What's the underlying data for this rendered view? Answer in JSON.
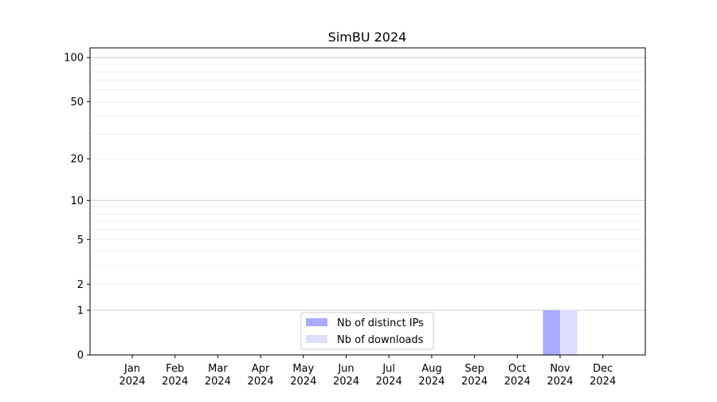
{
  "chart_data": {
    "type": "bar",
    "title": "SimBU 2024",
    "xlabel": "",
    "ylabel": "",
    "y_scale": "log(1+y)",
    "ylim": [
      0,
      116
    ],
    "grid": true,
    "legend_position": "lower-center",
    "categories": [
      "Jan\n2024",
      "Feb\n2024",
      "Mar\n2024",
      "Apr\n2024",
      "May\n2024",
      "Jun\n2024",
      "Jul\n2024",
      "Aug\n2024",
      "Sep\n2024",
      "Oct\n2024",
      "Nov\n2024",
      "Dec\n2024"
    ],
    "y_ticks": [
      0,
      1,
      2,
      5,
      10,
      20,
      50,
      100
    ],
    "series": [
      {
        "name": "Nb of distinct IPs",
        "color": "#aaaaff",
        "values": [
          0,
          0,
          0,
          0,
          0,
          0,
          0,
          0,
          0,
          0,
          1,
          0
        ]
      },
      {
        "name": "Nb of downloads",
        "color": "#ddddff",
        "values": [
          0,
          0,
          0,
          0,
          0,
          0,
          0,
          0,
          0,
          0,
          1,
          0
        ]
      }
    ]
  }
}
